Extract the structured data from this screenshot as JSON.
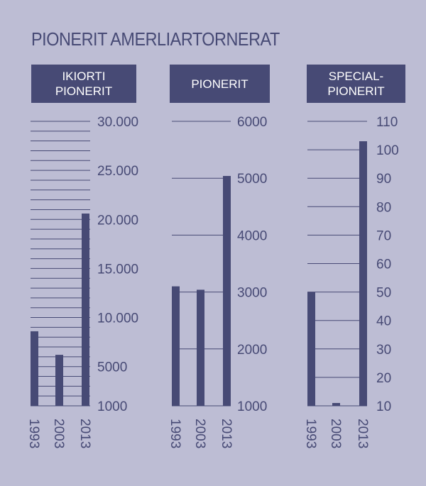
{
  "title": "PIONERIT AMERLIARTORNERAT",
  "colors": {
    "background": "#bdbdd4",
    "bar": "#474a75",
    "grid": "#474a75"
  },
  "chart_data": [
    {
      "type": "bar",
      "title": "IKIORTI\nPIONERIT",
      "categories": [
        "1993",
        "2003",
        "2013"
      ],
      "values": [
        8600,
        6200,
        20600
      ],
      "ylim": [
        1000,
        30000
      ],
      "grid_step": 1000,
      "ticks": [
        {
          "v": 1000,
          "label": "1000"
        },
        {
          "v": 5000,
          "label": "5000"
        },
        {
          "v": 10000,
          "label": "10.000"
        },
        {
          "v": 15000,
          "label": "15.000"
        },
        {
          "v": 20000,
          "label": "20.000"
        },
        {
          "v": 25000,
          "label": "25.000"
        },
        {
          "v": 30000,
          "label": "30.000"
        }
      ]
    },
    {
      "type": "bar",
      "title": "PIONERIT",
      "categories": [
        "1993",
        "2003",
        "2013"
      ],
      "values": [
        3100,
        3040,
        5040
      ],
      "ylim": [
        1000,
        6000
      ],
      "grid_step": 1000,
      "ticks": [
        {
          "v": 1000,
          "label": "1000"
        },
        {
          "v": 2000,
          "label": "2000"
        },
        {
          "v": 3000,
          "label": "3000"
        },
        {
          "v": 4000,
          "label": "4000"
        },
        {
          "v": 5000,
          "label": "5000"
        },
        {
          "v": 6000,
          "label": "6000"
        }
      ]
    },
    {
      "type": "bar",
      "title": "SPECIAL-\nPIONERIT",
      "categories": [
        "1993",
        "2003",
        "2013"
      ],
      "values": [
        50,
        11,
        103
      ],
      "ylim": [
        10,
        110
      ],
      "grid_step": 10,
      "ticks": [
        {
          "v": 10,
          "label": "10"
        },
        {
          "v": 20,
          "label": "20"
        },
        {
          "v": 30,
          "label": "30"
        },
        {
          "v": 40,
          "label": "40"
        },
        {
          "v": 50,
          "label": "50"
        },
        {
          "v": 60,
          "label": "60"
        },
        {
          "v": 70,
          "label": "70"
        },
        {
          "v": 80,
          "label": "80"
        },
        {
          "v": 90,
          "label": "90"
        },
        {
          "v": 100,
          "label": "100"
        },
        {
          "v": 110,
          "label": "110"
        }
      ]
    }
  ]
}
